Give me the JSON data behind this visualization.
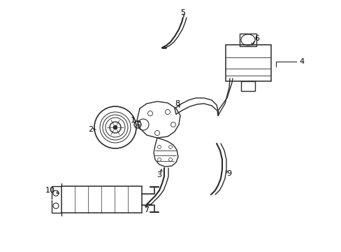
{
  "bg_color": "#ffffff",
  "line_color": "#2a2a2a",
  "label_color": "#000000",
  "figsize": [
    4.89,
    3.6
  ],
  "dpi": 100,
  "font_size": 7.5
}
